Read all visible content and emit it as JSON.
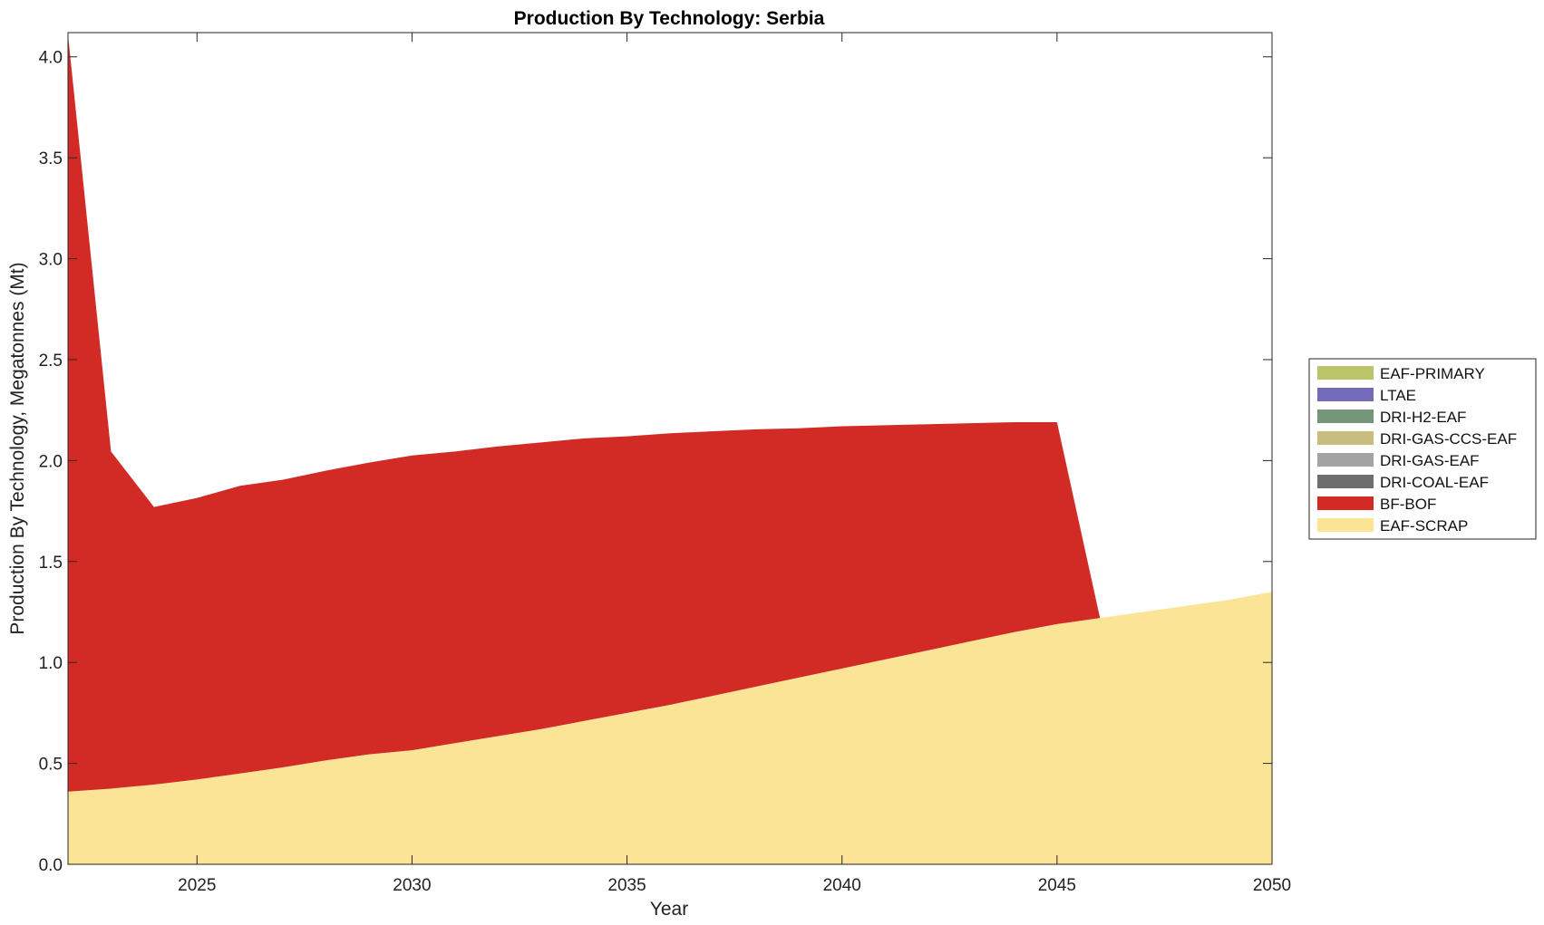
{
  "chart_data": {
    "type": "area",
    "stacked": true,
    "title": "Production By Technology: Serbia",
    "xlabel": "Year",
    "ylabel": "Production By Technology, Megatonnes (Mt)",
    "xlim": [
      2022,
      2050
    ],
    "ylim": [
      0,
      4.12
    ],
    "xticks": [
      2025,
      2030,
      2035,
      2040,
      2045,
      2050
    ],
    "yticks": [
      0.0,
      0.5,
      1.0,
      1.5,
      2.0,
      2.5,
      3.0,
      3.5,
      4.0
    ],
    "ytick_labels": [
      "0.0",
      "0.5",
      "1.0",
      "1.5",
      "2.0",
      "2.5",
      "3.0",
      "3.5",
      "4.0"
    ],
    "legend_position": "right",
    "x": [
      2022,
      2023,
      2024,
      2025,
      2026,
      2027,
      2028,
      2029,
      2030,
      2031,
      2032,
      2033,
      2034,
      2035,
      2036,
      2037,
      2038,
      2039,
      2040,
      2041,
      2042,
      2043,
      2044,
      2045,
      2046,
      2047,
      2048,
      2049,
      2050
    ],
    "series": [
      {
        "name": "EAF-SCRAP",
        "color": "#FCE497",
        "values": [
          0.36,
          0.375,
          0.395,
          0.42,
          0.45,
          0.48,
          0.515,
          0.545,
          0.565,
          0.6,
          0.635,
          0.67,
          0.71,
          0.75,
          0.79,
          0.835,
          0.88,
          0.925,
          0.97,
          1.015,
          1.06,
          1.105,
          1.15,
          1.19,
          1.22,
          1.25,
          1.28,
          1.31,
          1.35
        ]
      },
      {
        "name": "BF-BOF",
        "color": "#D22B25",
        "values": [
          3.75,
          1.67,
          1.375,
          1.395,
          1.425,
          1.425,
          1.435,
          1.445,
          1.46,
          1.445,
          1.435,
          1.42,
          1.4,
          1.37,
          1.345,
          1.31,
          1.275,
          1.235,
          1.2,
          1.16,
          1.12,
          1.08,
          1.04,
          1.0,
          0,
          0,
          0,
          0,
          0
        ]
      },
      {
        "name": "DRI-COAL-EAF",
        "color": "#6E6E6E",
        "values": [
          0,
          0,
          0,
          0,
          0,
          0,
          0,
          0,
          0,
          0,
          0,
          0,
          0,
          0,
          0,
          0,
          0,
          0,
          0,
          0,
          0,
          0,
          0,
          0,
          0,
          0,
          0,
          0,
          0
        ]
      },
      {
        "name": "DRI-GAS-EAF",
        "color": "#A3A3A3",
        "values": [
          0,
          0,
          0,
          0,
          0,
          0,
          0,
          0,
          0,
          0,
          0,
          0,
          0,
          0,
          0,
          0,
          0,
          0,
          0,
          0,
          0,
          0,
          0,
          0,
          0,
          0,
          0,
          0,
          0
        ]
      },
      {
        "name": "DRI-GAS-CCS-EAF",
        "color": "#C8BC7F",
        "values": [
          0,
          0,
          0,
          0,
          0,
          0,
          0,
          0,
          0,
          0,
          0,
          0,
          0,
          0,
          0,
          0,
          0,
          0,
          0,
          0,
          0,
          0,
          0,
          0,
          0,
          0,
          0,
          0,
          0
        ]
      },
      {
        "name": "DRI-H2-EAF",
        "color": "#76967B",
        "values": [
          0,
          0,
          0,
          0,
          0,
          0,
          0,
          0,
          0,
          0,
          0,
          0,
          0,
          0,
          0,
          0,
          0,
          0,
          0,
          0,
          0,
          0,
          0,
          0,
          0,
          0,
          0,
          0,
          0
        ]
      },
      {
        "name": "LTAE",
        "color": "#746CB9",
        "values": [
          0,
          0,
          0,
          0,
          0,
          0,
          0,
          0,
          0,
          0,
          0,
          0,
          0,
          0,
          0,
          0,
          0,
          0,
          0,
          0,
          0,
          0,
          0,
          0,
          0,
          0,
          0,
          0,
          0
        ]
      },
      {
        "name": "EAF-PRIMARY",
        "color": "#BCC46A",
        "values": [
          0,
          0,
          0,
          0,
          0,
          0,
          0,
          0,
          0,
          0,
          0,
          0,
          0,
          0,
          0,
          0,
          0,
          0,
          0,
          0,
          0,
          0,
          0,
          0,
          0,
          0,
          0,
          0,
          0
        ]
      }
    ],
    "legend_order": [
      "EAF-PRIMARY",
      "LTAE",
      "DRI-H2-EAF",
      "DRI-GAS-CCS-EAF",
      "DRI-GAS-EAF",
      "DRI-COAL-EAF",
      "BF-BOF",
      "EAF-SCRAP"
    ]
  }
}
